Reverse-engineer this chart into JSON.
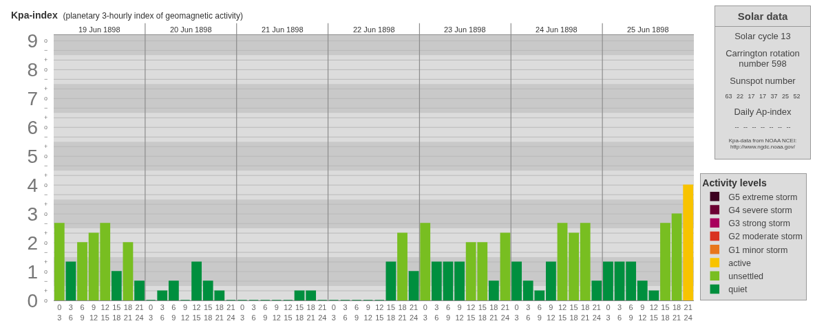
{
  "chart_data": [
    {
      "type": "bar",
      "title": "Kpa-index",
      "subtitle": "(planetary 3-hourly index of geomagnetic activity)",
      "legend_title": "Activity levels",
      "categories": [
        "0\n3",
        "3\n6",
        "6\n9",
        "9\n12",
        "12\n15",
        "15\n18",
        "18\n21",
        "21\n24",
        "0\n3",
        "3\n6",
        "6\n9",
        "9\n12",
        "12\n15",
        "15\n18",
        "18\n21",
        "21\n24",
        "0\n3",
        "3\n6",
        "6\n9",
        "9\n12",
        "12\n15",
        "15\n18",
        "18\n21",
        "21\n24",
        "0\n3",
        "3\n6",
        "6\n9",
        "9\n12",
        "12\n15",
        "15\n18",
        "18\n21",
        "21\n24",
        "0\n3",
        "3\n6",
        "6\n9",
        "9\n12",
        "12\n15",
        "15\n18",
        "18\n21",
        "21\n24",
        "0\n3",
        "3\n6",
        "6\n9",
        "9\n12",
        "12\n15",
        "15\n18",
        "18\n21",
        "21\n24",
        "0\n3",
        "3\n6",
        "6\n9",
        "9\n12",
        "12\n15",
        "15\n18",
        "18\n21",
        "21\n24"
      ],
      "annotations": [
        "19 Jun 1898",
        "20 Jun 1898",
        "21 Jun 1898",
        "22 Jun 1898",
        "23 Jun 1898",
        "24 Jun 1898",
        "25 Jun 1898",
        "o",
        "+",
        "−",
        "o",
        "+",
        "−",
        "o",
        "+",
        "−",
        "o",
        "+",
        "−",
        "o",
        "+",
        "−",
        "o",
        "+",
        "−",
        "o",
        "+",
        "−",
        "o",
        "+",
        "−",
        "o",
        "+",
        "−",
        "o"
      ],
      "ylim": [
        0,
        9.2
      ],
      "yticks": [
        0,
        1,
        2,
        3,
        4,
        5,
        6,
        7,
        8,
        9
      ],
      "grid": "y",
      "legend": "right",
      "bands": [
        {
          "axis": "y",
          "from": 0.5,
          "to": 1.5,
          "color": "#c9c9c9"
        },
        {
          "axis": "y",
          "from": 2.5,
          "to": 3.5,
          "color": "#c9c9c9"
        },
        {
          "axis": "y",
          "from": 4.5,
          "to": 5.5,
          "color": "#c9c9c9"
        },
        {
          "axis": "y",
          "from": 6.5,
          "to": 7.5,
          "color": "#c9c9c9"
        },
        {
          "axis": "y",
          "from": 8.5,
          "to": 9.2,
          "color": "#c9c9c9"
        }
      ],
      "series": [
        {
          "name": "G5 extreme storm",
          "color": "#3d0020",
          "values": [
            null,
            null,
            null,
            null,
            null,
            null,
            null,
            null,
            null,
            null,
            null,
            null,
            null,
            null,
            null,
            null,
            null,
            null,
            null,
            null,
            null,
            null,
            null,
            null,
            null,
            null,
            null,
            null,
            null,
            null,
            null,
            null,
            null,
            null,
            null,
            null,
            null,
            null,
            null,
            null,
            null,
            null,
            null,
            null,
            null,
            null,
            null,
            null,
            null,
            null,
            null,
            null,
            null,
            null,
            null,
            null
          ]
        },
        {
          "name": "G4 severe storm",
          "color": "#6c0033",
          "values": [
            null,
            null,
            null,
            null,
            null,
            null,
            null,
            null,
            null,
            null,
            null,
            null,
            null,
            null,
            null,
            null,
            null,
            null,
            null,
            null,
            null,
            null,
            null,
            null,
            null,
            null,
            null,
            null,
            null,
            null,
            null,
            null,
            null,
            null,
            null,
            null,
            null,
            null,
            null,
            null,
            null,
            null,
            null,
            null,
            null,
            null,
            null,
            null,
            null,
            null,
            null,
            null,
            null,
            null,
            null,
            null
          ]
        },
        {
          "name": "G3 strong storm",
          "color": "#a8005c",
          "values": [
            null,
            null,
            null,
            null,
            null,
            null,
            null,
            null,
            null,
            null,
            null,
            null,
            null,
            null,
            null,
            null,
            null,
            null,
            null,
            null,
            null,
            null,
            null,
            null,
            null,
            null,
            null,
            null,
            null,
            null,
            null,
            null,
            null,
            null,
            null,
            null,
            null,
            null,
            null,
            null,
            null,
            null,
            null,
            null,
            null,
            null,
            null,
            null,
            null,
            null,
            null,
            null,
            null,
            null,
            null,
            null
          ]
        },
        {
          "name": "G2 moderate storm",
          "color": "#d93320",
          "values": [
            null,
            null,
            null,
            null,
            null,
            null,
            null,
            null,
            null,
            null,
            null,
            null,
            null,
            null,
            null,
            null,
            null,
            null,
            null,
            null,
            null,
            null,
            null,
            null,
            null,
            null,
            null,
            null,
            null,
            null,
            null,
            null,
            null,
            null,
            null,
            null,
            null,
            null,
            null,
            null,
            null,
            null,
            null,
            null,
            null,
            null,
            null,
            null,
            null,
            null,
            null,
            null,
            null,
            null,
            null,
            null
          ]
        },
        {
          "name": "G1 minor storm",
          "color": "#e8761c",
          "values": [
            null,
            null,
            null,
            null,
            null,
            null,
            null,
            null,
            null,
            null,
            null,
            null,
            null,
            null,
            null,
            null,
            null,
            null,
            null,
            null,
            null,
            null,
            null,
            null,
            null,
            null,
            null,
            null,
            null,
            null,
            null,
            null,
            null,
            null,
            null,
            null,
            null,
            null,
            null,
            null,
            null,
            null,
            null,
            null,
            null,
            null,
            null,
            null,
            null,
            null,
            null,
            null,
            null,
            null,
            null,
            null
          ]
        },
        {
          "name": "active",
          "color": "#f8c300",
          "values": [
            null,
            null,
            null,
            null,
            null,
            null,
            null,
            null,
            null,
            null,
            null,
            null,
            null,
            null,
            null,
            null,
            null,
            null,
            null,
            null,
            null,
            null,
            null,
            null,
            null,
            null,
            null,
            null,
            null,
            null,
            null,
            null,
            null,
            null,
            null,
            null,
            null,
            null,
            null,
            null,
            null,
            null,
            null,
            null,
            null,
            null,
            null,
            null,
            null,
            null,
            null,
            null,
            null,
            null,
            null,
            4
          ]
        },
        {
          "name": "unsettled",
          "color": "#78be21",
          "values": [
            2.67,
            null,
            2,
            2.33,
            2.67,
            null,
            2,
            null,
            null,
            null,
            null,
            null,
            null,
            null,
            null,
            null,
            null,
            null,
            null,
            null,
            null,
            null,
            null,
            null,
            null,
            null,
            null,
            null,
            null,
            null,
            2.33,
            null,
            2.67,
            null,
            null,
            null,
            2,
            2,
            null,
            2.33,
            null,
            null,
            null,
            null,
            2.67,
            2.33,
            2.67,
            null,
            null,
            null,
            null,
            null,
            null,
            2.67,
            3,
            null
          ]
        },
        {
          "name": "quiet",
          "color": "#008f3e",
          "values": [
            null,
            1.33,
            null,
            null,
            null,
            1,
            null,
            0.67,
            0,
            0.33,
            0.67,
            0,
            1.33,
            0.67,
            0.33,
            0,
            0,
            0,
            0,
            0,
            0,
            0.33,
            0.33,
            0,
            0,
            0,
            0,
            0,
            0,
            1.33,
            null,
            1,
            null,
            1.33,
            1.33,
            1.33,
            null,
            null,
            0.67,
            null,
            1.33,
            0.67,
            0.33,
            1.33,
            null,
            null,
            null,
            0.67,
            1.33,
            1.33,
            1.33,
            0.67,
            0.33,
            null,
            null,
            null
          ]
        }
      ]
    },
    {
      "type": "other",
      "title": "Solar data",
      "annotations": [
        "Solar cycle 13",
        "Carrington rotation number 598",
        "Sunspot number",
        "63 22 17 17 37 25 52",
        "Daily Ap-index",
        "-- -- -- -- -- -- --",
        "Kpa-data from NOAA NCEI: http://www.ngdc.noaa.gov/"
      ]
    }
  ]
}
